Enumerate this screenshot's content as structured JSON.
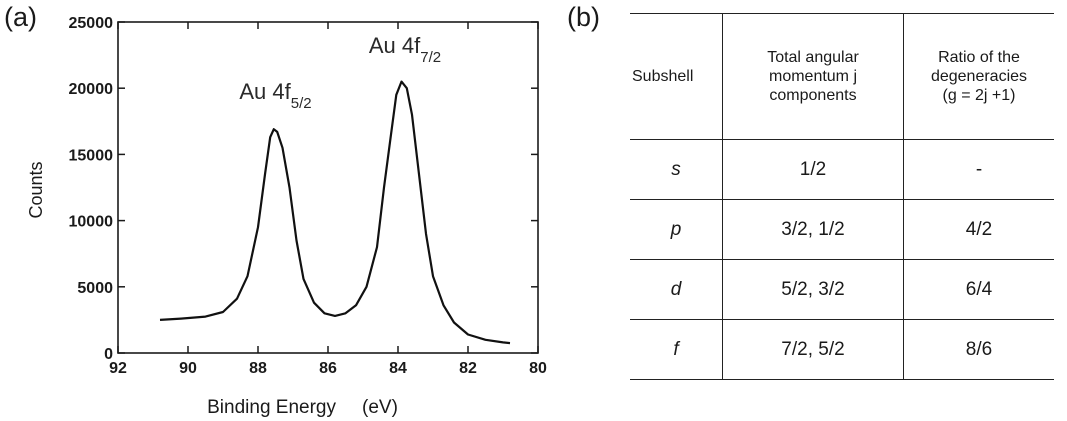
{
  "panels": {
    "a": "(a)",
    "b": "(b)"
  },
  "chart_data": {
    "type": "line",
    "xlabel": "Binding Energy",
    "xunit": "(eV)",
    "ylabel": "Counts",
    "xlim": [
      92,
      80
    ],
    "ylim": [
      0,
      25000
    ],
    "xticks": [
      92,
      90,
      88,
      86,
      84,
      82,
      80
    ],
    "yticks": [
      0,
      5000,
      10000,
      15000,
      20000,
      25000
    ],
    "x_reversed": true,
    "annotations": [
      {
        "name": "au-4f52",
        "text": "Au 4f",
        "subscript": "5/2",
        "x": 87.5,
        "y": 16900
      },
      {
        "name": "au-4f72",
        "text": "Au 4f",
        "subscript": "7/2",
        "x": 83.8,
        "y": 20400
      }
    ],
    "series": [
      {
        "values": [
          [
            90.8,
            2500
          ],
          [
            90.2,
            2600
          ],
          [
            89.5,
            2750
          ],
          [
            89.0,
            3100
          ],
          [
            88.6,
            4100
          ],
          [
            88.3,
            5800
          ],
          [
            88.0,
            9500
          ],
          [
            87.8,
            13500
          ],
          [
            87.65,
            16300
          ],
          [
            87.55,
            16900
          ],
          [
            87.45,
            16700
          ],
          [
            87.3,
            15500
          ],
          [
            87.1,
            12500
          ],
          [
            86.9,
            8500
          ],
          [
            86.7,
            5600
          ],
          [
            86.4,
            3800
          ],
          [
            86.1,
            3000
          ],
          [
            85.8,
            2800
          ],
          [
            85.5,
            3000
          ],
          [
            85.2,
            3600
          ],
          [
            84.9,
            5000
          ],
          [
            84.6,
            8000
          ],
          [
            84.4,
            12500
          ],
          [
            84.2,
            16500
          ],
          [
            84.05,
            19500
          ],
          [
            83.9,
            20500
          ],
          [
            83.75,
            20000
          ],
          [
            83.6,
            18000
          ],
          [
            83.4,
            13500
          ],
          [
            83.2,
            9000
          ],
          [
            83.0,
            5800
          ],
          [
            82.7,
            3600
          ],
          [
            82.4,
            2300
          ],
          [
            82.0,
            1400
          ],
          [
            81.5,
            1000
          ],
          [
            81.0,
            800
          ],
          [
            80.8,
            750
          ]
        ]
      }
    ]
  },
  "table": {
    "header": {
      "c1": "Subshell",
      "c2": [
        "Total angular",
        "momentum j",
        "components"
      ],
      "c3": [
        "Ratio of the",
        "degeneracies",
        "(g = 2j +1)"
      ]
    },
    "rows": [
      {
        "subshell": "s",
        "components": "1/2",
        "ratio": "-"
      },
      {
        "subshell": "p",
        "components": "3/2, 1/2",
        "ratio": "4/2"
      },
      {
        "subshell": "d",
        "components": "5/2, 3/2",
        "ratio": "6/4"
      },
      {
        "subshell": "f",
        "components": "7/2, 5/2",
        "ratio": "8/6"
      }
    ]
  }
}
